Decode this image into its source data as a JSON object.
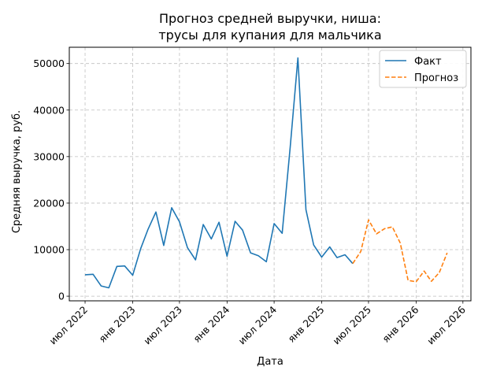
{
  "chart_data": {
    "type": "line",
    "title_line1": "Прогноз средней выручки, ниша:",
    "title_line2": "трусы для купания для мальчика",
    "xlabel": "Дата",
    "ylabel": "Средняя выручка, руб.",
    "ylim": [
      -1000,
      53500
    ],
    "xlim": [
      "2022-05-01",
      "2026-08-01"
    ],
    "grid": true,
    "legend_position": "top-right",
    "y_ticks": [
      0,
      10000,
      20000,
      30000,
      40000,
      50000
    ],
    "x_ticks": [
      {
        "date": "2022-07-01",
        "label": "июл 2022"
      },
      {
        "date": "2023-01-01",
        "label": "янв 2023"
      },
      {
        "date": "2023-07-01",
        "label": "июл 2023"
      },
      {
        "date": "2024-01-01",
        "label": "янв 2024"
      },
      {
        "date": "2024-07-01",
        "label": "июл 2024"
      },
      {
        "date": "2025-01-01",
        "label": "янв 2025"
      },
      {
        "date": "2025-07-01",
        "label": "июл 2025"
      },
      {
        "date": "2026-01-01",
        "label": "янв 2026"
      },
      {
        "date": "2026-07-01",
        "label": "июл 2026"
      }
    ],
    "series": [
      {
        "name": "Факт",
        "color": "#1f77b4",
        "style": "solid",
        "x": [
          "2022-07-01",
          "2022-08-01",
          "2022-09-01",
          "2022-10-01",
          "2022-11-01",
          "2022-12-01",
          "2023-01-01",
          "2023-02-01",
          "2023-03-01",
          "2023-04-01",
          "2023-05-01",
          "2023-06-01",
          "2023-07-01",
          "2023-08-01",
          "2023-09-01",
          "2023-10-01",
          "2023-11-01",
          "2023-12-01",
          "2024-01-01",
          "2024-02-01",
          "2024-03-01",
          "2024-04-01",
          "2024-05-01",
          "2024-06-01",
          "2024-07-01",
          "2024-08-01",
          "2024-09-01",
          "2024-10-01",
          "2024-11-01",
          "2024-12-01",
          "2025-01-01",
          "2025-02-01",
          "2025-03-01",
          "2025-04-01",
          "2025-05-01"
        ],
        "values": [
          4600,
          4700,
          2200,
          1800,
          6400,
          6500,
          4500,
          10200,
          14300,
          18100,
          10900,
          19000,
          16000,
          10400,
          7800,
          15400,
          12300,
          15900,
          8600,
          16100,
          14200,
          9300,
          8700,
          7400,
          15600,
          13500,
          32000,
          51200,
          18600,
          11000,
          8400,
          10600,
          8300,
          8900,
          7000
        ]
      },
      {
        "name": "Прогноз",
        "color": "#ff7f0e",
        "style": "dashed",
        "x": [
          "2025-05-01",
          "2025-06-01",
          "2025-07-01",
          "2025-08-01",
          "2025-09-01",
          "2025-10-01",
          "2025-11-01",
          "2025-12-01",
          "2026-01-01",
          "2026-02-01",
          "2026-03-01",
          "2026-04-01",
          "2026-05-01"
        ],
        "values": [
          7000,
          9600,
          16400,
          13400,
          14500,
          14900,
          11400,
          3400,
          3100,
          5400,
          3200,
          5100,
          9300
        ]
      }
    ]
  }
}
